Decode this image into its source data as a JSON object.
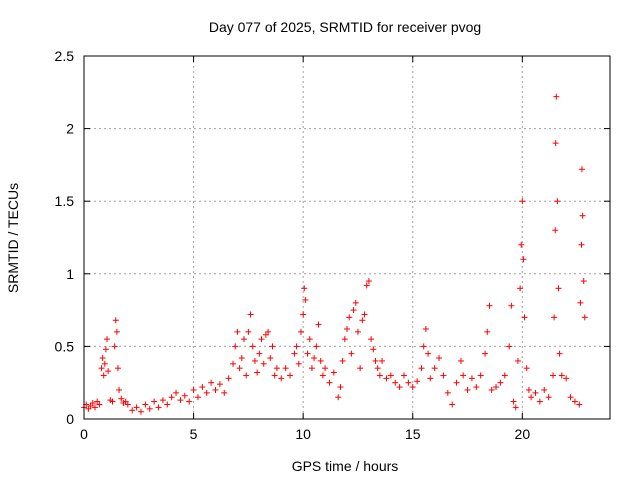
{
  "chart_data": {
    "type": "scatter",
    "title": "Day 077 of 2025, SRMTID for receiver pvog",
    "xlabel": "GPS time / hours",
    "ylabel": "SRMTID / TECUs",
    "xlim": [
      0,
      24
    ],
    "ylim": [
      0,
      2.5
    ],
    "x_ticks": [
      0,
      5,
      10,
      15,
      20
    ],
    "x_tick_labels": [
      "0",
      "5",
      "10",
      "15",
      "20"
    ],
    "y_ticks": [
      0,
      0.5,
      1,
      1.5,
      2,
      2.5
    ],
    "y_tick_labels": [
      "0",
      "0.5",
      "1",
      "1.5",
      "2",
      "2.5"
    ],
    "grid": true,
    "marker": "+",
    "colors": {
      "series": "#ff0000",
      "grid": "#a0a0a0",
      "axis": "#000000"
    },
    "series": [
      {
        "name": "SRMTID",
        "points": [
          [
            0.0,
            0.08
          ],
          [
            0.1,
            0.1
          ],
          [
            0.2,
            0.07
          ],
          [
            0.3,
            0.09
          ],
          [
            0.4,
            0.11
          ],
          [
            0.5,
            0.08
          ],
          [
            0.6,
            0.12
          ],
          [
            0.7,
            0.1
          ],
          [
            0.8,
            0.35
          ],
          [
            0.85,
            0.42
          ],
          [
            0.9,
            0.3
          ],
          [
            0.95,
            0.38
          ],
          [
            1.0,
            0.48
          ],
          [
            1.05,
            0.55
          ],
          [
            1.1,
            0.33
          ],
          [
            1.2,
            0.13
          ],
          [
            1.3,
            0.12
          ],
          [
            1.4,
            0.5
          ],
          [
            1.45,
            0.68
          ],
          [
            1.5,
            0.6
          ],
          [
            1.55,
            0.35
          ],
          [
            1.6,
            0.2
          ],
          [
            1.7,
            0.14
          ],
          [
            1.8,
            0.11
          ],
          [
            1.9,
            0.12
          ],
          [
            2.0,
            0.1
          ],
          [
            2.2,
            0.06
          ],
          [
            2.4,
            0.08
          ],
          [
            2.6,
            0.05
          ],
          [
            2.8,
            0.1
          ],
          [
            3.0,
            0.07
          ],
          [
            3.2,
            0.12
          ],
          [
            3.4,
            0.08
          ],
          [
            3.6,
            0.13
          ],
          [
            3.8,
            0.1
          ],
          [
            4.0,
            0.15
          ],
          [
            4.2,
            0.18
          ],
          [
            4.4,
            0.13
          ],
          [
            4.6,
            0.16
          ],
          [
            4.8,
            0.12
          ],
          [
            5.0,
            0.2
          ],
          [
            5.2,
            0.15
          ],
          [
            5.4,
            0.22
          ],
          [
            5.6,
            0.18
          ],
          [
            5.8,
            0.25
          ],
          [
            6.0,
            0.2
          ],
          [
            6.2,
            0.24
          ],
          [
            6.4,
            0.18
          ],
          [
            6.6,
            0.28
          ],
          [
            6.8,
            0.38
          ],
          [
            6.9,
            0.5
          ],
          [
            7.0,
            0.6
          ],
          [
            7.1,
            0.35
          ],
          [
            7.2,
            0.42
          ],
          [
            7.3,
            0.55
          ],
          [
            7.4,
            0.3
          ],
          [
            7.5,
            0.6
          ],
          [
            7.6,
            0.72
          ],
          [
            7.7,
            0.5
          ],
          [
            7.8,
            0.4
          ],
          [
            7.9,
            0.32
          ],
          [
            8.0,
            0.45
          ],
          [
            8.1,
            0.55
          ],
          [
            8.2,
            0.38
          ],
          [
            8.3,
            0.58
          ],
          [
            8.4,
            0.6
          ],
          [
            8.5,
            0.42
          ],
          [
            8.6,
            0.5
          ],
          [
            8.7,
            0.3
          ],
          [
            8.8,
            0.35
          ],
          [
            9.0,
            0.28
          ],
          [
            9.2,
            0.35
          ],
          [
            9.4,
            0.3
          ],
          [
            9.6,
            0.45
          ],
          [
            9.7,
            0.5
          ],
          [
            9.8,
            0.38
          ],
          [
            9.9,
            0.6
          ],
          [
            10.0,
            0.72
          ],
          [
            10.05,
            0.9
          ],
          [
            10.1,
            0.82
          ],
          [
            10.2,
            0.45
          ],
          [
            10.3,
            0.55
          ],
          [
            10.4,
            0.35
          ],
          [
            10.5,
            0.42
          ],
          [
            10.6,
            0.5
          ],
          [
            10.7,
            0.65
          ],
          [
            10.8,
            0.4
          ],
          [
            10.9,
            0.3
          ],
          [
            11.0,
            0.35
          ],
          [
            11.2,
            0.25
          ],
          [
            11.4,
            0.32
          ],
          [
            11.6,
            0.15
          ],
          [
            11.7,
            0.22
          ],
          [
            11.8,
            0.4
          ],
          [
            11.9,
            0.55
          ],
          [
            12.0,
            0.62
          ],
          [
            12.1,
            0.7
          ],
          [
            12.2,
            0.45
          ],
          [
            12.3,
            0.75
          ],
          [
            12.4,
            0.8
          ],
          [
            12.5,
            0.6
          ],
          [
            12.6,
            0.35
          ],
          [
            12.7,
            0.68
          ],
          [
            12.8,
            0.72
          ],
          [
            12.9,
            0.92
          ],
          [
            13.0,
            0.95
          ],
          [
            13.1,
            0.55
          ],
          [
            13.2,
            0.48
          ],
          [
            13.3,
            0.4
          ],
          [
            13.4,
            0.35
          ],
          [
            13.5,
            0.3
          ],
          [
            13.6,
            0.4
          ],
          [
            13.8,
            0.28
          ],
          [
            14.0,
            0.3
          ],
          [
            14.2,
            0.25
          ],
          [
            14.4,
            0.22
          ],
          [
            14.6,
            0.3
          ],
          [
            14.8,
            0.25
          ],
          [
            15.0,
            0.22
          ],
          [
            15.2,
            0.26
          ],
          [
            15.4,
            0.35
          ],
          [
            15.5,
            0.5
          ],
          [
            15.6,
            0.62
          ],
          [
            15.7,
            0.45
          ],
          [
            15.8,
            0.28
          ],
          [
            16.0,
            0.35
          ],
          [
            16.2,
            0.42
          ],
          [
            16.4,
            0.3
          ],
          [
            16.6,
            0.18
          ],
          [
            16.8,
            0.1
          ],
          [
            17.0,
            0.25
          ],
          [
            17.2,
            0.4
          ],
          [
            17.3,
            0.3
          ],
          [
            17.5,
            0.2
          ],
          [
            17.7,
            0.28
          ],
          [
            17.9,
            0.22
          ],
          [
            18.1,
            0.3
          ],
          [
            18.3,
            0.45
          ],
          [
            18.4,
            0.6
          ],
          [
            18.5,
            0.78
          ],
          [
            18.6,
            0.2
          ],
          [
            18.8,
            0.22
          ],
          [
            19.0,
            0.25
          ],
          [
            19.2,
            0.3
          ],
          [
            19.4,
            0.5
          ],
          [
            19.5,
            0.78
          ],
          [
            19.6,
            0.12
          ],
          [
            19.7,
            0.08
          ],
          [
            19.8,
            0.4
          ],
          [
            19.9,
            0.9
          ],
          [
            19.95,
            1.2
          ],
          [
            20.0,
            1.5
          ],
          [
            20.05,
            1.1
          ],
          [
            20.1,
            0.7
          ],
          [
            20.2,
            0.35
          ],
          [
            20.3,
            0.2
          ],
          [
            20.4,
            0.15
          ],
          [
            20.6,
            0.18
          ],
          [
            20.8,
            0.12
          ],
          [
            21.0,
            0.2
          ],
          [
            21.2,
            0.15
          ],
          [
            21.4,
            0.3
          ],
          [
            21.45,
            0.7
          ],
          [
            21.5,
            1.3
          ],
          [
            21.52,
            1.9
          ],
          [
            21.55,
            2.22
          ],
          [
            21.6,
            1.5
          ],
          [
            21.65,
            0.9
          ],
          [
            21.7,
            0.45
          ],
          [
            21.8,
            0.3
          ],
          [
            22.0,
            0.28
          ],
          [
            22.2,
            0.15
          ],
          [
            22.4,
            0.12
          ],
          [
            22.6,
            0.1
          ],
          [
            22.65,
            0.8
          ],
          [
            22.7,
            1.2
          ],
          [
            22.72,
            1.72
          ],
          [
            22.75,
            1.4
          ],
          [
            22.8,
            0.95
          ],
          [
            22.85,
            0.7
          ]
        ]
      }
    ]
  }
}
